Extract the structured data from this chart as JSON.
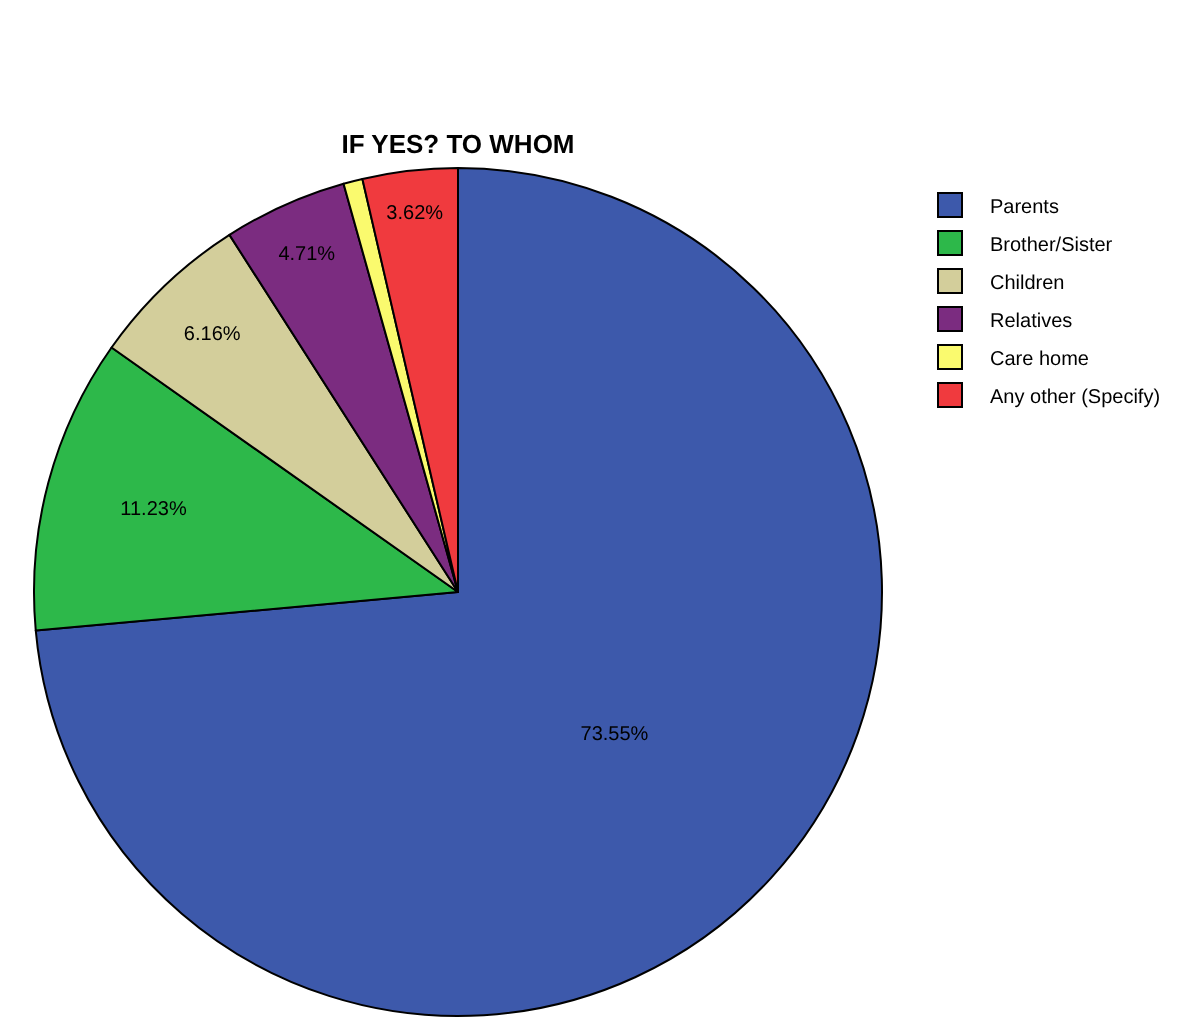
{
  "chart_data": {
    "type": "pie",
    "title": "IF YES? TO WHOM",
    "categories": [
      "Parents",
      "Brother/Sister",
      "Children",
      "Relatives",
      "Care home",
      "Any other (Specify)"
    ],
    "values": [
      73.55,
      11.23,
      6.16,
      4.71,
      0.73,
      3.62
    ],
    "value_labels": [
      "73.55%",
      "11.23%",
      "6.16%",
      "4.71%",
      null,
      "3.62%"
    ],
    "colors": [
      "#3d59ab",
      "#2db84a",
      "#d3ce9b",
      "#7b2c80",
      "#fafa6e",
      "#f03a3e"
    ],
    "legend": "top right"
  }
}
